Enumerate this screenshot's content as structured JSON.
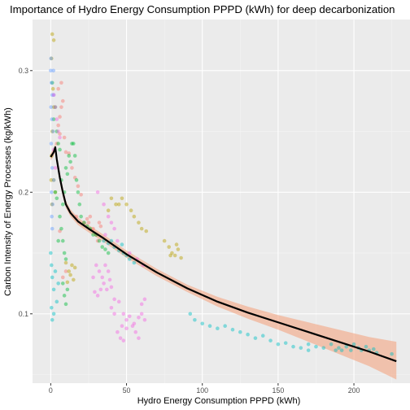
{
  "chart_data": {
    "type": "scatter",
    "title": "Importance of  Hydro Energy Consumption PPPD (kWh)  for deep decarbonization",
    "xlabel": "Hydro Energy Consumption PPPD (kWh)",
    "ylabel": "Carbon Intensity of Energy Processes (kg/kWh)",
    "xlim": [
      -12,
      237
    ],
    "ylim": [
      0.043,
      0.342
    ],
    "x_ticks": [
      0,
      50,
      100,
      150,
      200
    ],
    "x_tick_labels": [
      "0",
      "50",
      "100",
      "150",
      "200"
    ],
    "y_ticks": [
      0.1,
      0.2,
      0.3
    ],
    "y_tick_labels": [
      "0.1",
      "0.2",
      "0.3"
    ],
    "grid": true,
    "legend": "none",
    "point_alpha": 0.45,
    "series": [
      {
        "color": "#F8766D",
        "points": [
          [
            5,
            0.255
          ],
          [
            6,
            0.262
          ],
          [
            7,
            0.27
          ],
          [
            8,
            0.275
          ],
          [
            4,
            0.24
          ],
          [
            10,
            0.233
          ],
          [
            12,
            0.232
          ],
          [
            16,
            0.212
          ],
          [
            18,
            0.205
          ],
          [
            20,
            0.198
          ],
          [
            14,
            0.22
          ],
          [
            17,
            0.18
          ],
          [
            22,
            0.175
          ],
          [
            25,
            0.175
          ],
          [
            28,
            0.17
          ],
          [
            30,
            0.165
          ],
          [
            32,
            0.175
          ],
          [
            33,
            0.172
          ],
          [
            6,
            0.168
          ],
          [
            8,
            0.13
          ],
          [
            10,
            0.135
          ],
          [
            5,
            0.285
          ],
          [
            7,
            0.29
          ],
          [
            6,
            0.248
          ],
          [
            9,
            0.245
          ],
          [
            26,
            0.18
          ],
          [
            24,
            0.178
          ],
          [
            31,
            0.16
          ]
        ]
      },
      {
        "color": "#B79F00",
        "points": [
          [
            1,
            0.33
          ],
          [
            2,
            0.325
          ],
          [
            0.5,
            0.31
          ],
          [
            1.5,
            0.285
          ],
          [
            2,
            0.27
          ],
          [
            1,
            0.25
          ],
          [
            0.5,
            0.23
          ],
          [
            0.3,
            0.21
          ],
          [
            0.8,
            0.19
          ],
          [
            2,
            0.21
          ],
          [
            3,
            0.2
          ],
          [
            40,
            0.195
          ],
          [
            43,
            0.19
          ],
          [
            45,
            0.19
          ],
          [
            47,
            0.195
          ],
          [
            50,
            0.19
          ],
          [
            53,
            0.185
          ],
          [
            55,
            0.18
          ],
          [
            58,
            0.175
          ],
          [
            60,
            0.17
          ],
          [
            63,
            0.168
          ],
          [
            38,
            0.185
          ],
          [
            75,
            0.16
          ],
          [
            78,
            0.155
          ],
          [
            80,
            0.15
          ],
          [
            82,
            0.148
          ],
          [
            84,
            0.153
          ],
          [
            86,
            0.146
          ],
          [
            79,
            0.148
          ],
          [
            83,
            0.157
          ],
          [
            12,
            0.135
          ],
          [
            13,
            0.132
          ],
          [
            14,
            0.14
          ],
          [
            15,
            0.128
          ],
          [
            16,
            0.138
          ],
          [
            10,
            0.142
          ],
          [
            11,
            0.126
          ]
        ]
      },
      {
        "color": "#00BA38",
        "points": [
          [
            3,
            0.27
          ],
          [
            4,
            0.25
          ],
          [
            5,
            0.24
          ],
          [
            6,
            0.235
          ],
          [
            7,
            0.21
          ],
          [
            8,
            0.19
          ],
          [
            9,
            0.2
          ],
          [
            10,
            0.22
          ],
          [
            11,
            0.215
          ],
          [
            12,
            0.23
          ],
          [
            13,
            0.225
          ],
          [
            14,
            0.24
          ],
          [
            15,
            0.24
          ],
          [
            16,
            0.23
          ],
          [
            17,
            0.21
          ],
          [
            18,
            0.2
          ],
          [
            19,
            0.19
          ],
          [
            20,
            0.18
          ],
          [
            22,
            0.175
          ],
          [
            24,
            0.172
          ],
          [
            26,
            0.17
          ],
          [
            28,
            0.165
          ],
          [
            30,
            0.165
          ],
          [
            32,
            0.16
          ],
          [
            34,
            0.155
          ],
          [
            36,
            0.153
          ],
          [
            38,
            0.15
          ],
          [
            4,
            0.195
          ],
          [
            6,
            0.18
          ],
          [
            7,
            0.17
          ],
          [
            8,
            0.16
          ],
          [
            9,
            0.15
          ],
          [
            10,
            0.145
          ],
          [
            8,
            0.125
          ],
          [
            9,
            0.115
          ],
          [
            10,
            0.108
          ],
          [
            11,
            0.12
          ],
          [
            5,
            0.16
          ],
          [
            3,
            0.2
          ],
          [
            2,
            0.26
          ],
          [
            1,
            0.29
          ]
        ]
      },
      {
        "color": "#00BFC4",
        "points": [
          [
            0,
            0.15
          ],
          [
            0.5,
            0.14
          ],
          [
            1,
            0.13
          ],
          [
            2,
            0.12
          ],
          [
            3,
            0.135
          ],
          [
            4,
            0.11
          ],
          [
            5,
            0.125
          ],
          [
            1,
            0.095
          ],
          [
            0.5,
            0.105
          ],
          [
            2,
            0.1
          ],
          [
            35,
            0.16
          ],
          [
            38,
            0.158
          ],
          [
            40,
            0.16
          ],
          [
            42,
            0.155
          ],
          [
            45,
            0.152
          ],
          [
            48,
            0.15
          ],
          [
            50,
            0.148
          ],
          [
            52,
            0.145
          ],
          [
            55,
            0.142
          ],
          [
            47,
            0.157
          ],
          [
            95,
            0.095
          ],
          [
            100,
            0.092
          ],
          [
            105,
            0.09
          ],
          [
            110,
            0.088
          ],
          [
            115,
            0.09
          ],
          [
            120,
            0.087
          ],
          [
            125,
            0.085
          ],
          [
            130,
            0.083
          ],
          [
            135,
            0.08
          ],
          [
            140,
            0.082
          ],
          [
            145,
            0.078
          ],
          [
            150,
            0.075
          ],
          [
            155,
            0.076
          ],
          [
            160,
            0.073
          ],
          [
            165,
            0.072
          ],
          [
            170,
            0.075
          ],
          [
            175,
            0.073
          ],
          [
            180,
            0.072
          ],
          [
            185,
            0.075
          ],
          [
            188,
            0.07
          ],
          [
            190,
            0.072
          ],
          [
            192,
            0.07
          ],
          [
            195,
            0.073
          ],
          [
            198,
            0.07
          ],
          [
            200,
            0.075
          ],
          [
            203,
            0.072
          ],
          [
            205,
            0.07
          ],
          [
            208,
            0.073
          ],
          [
            210,
            0.07
          ],
          [
            213,
            0.071
          ],
          [
            215,
            0.068
          ],
          [
            225,
            0.067
          ],
          [
            92,
            0.1
          ],
          [
            170,
            0.07
          ]
        ]
      },
      {
        "color": "#619CFF",
        "points": [
          [
            0,
            0.3
          ],
          [
            0.5,
            0.29
          ],
          [
            1,
            0.28
          ],
          [
            0.2,
            0.27
          ],
          [
            0.8,
            0.26
          ],
          [
            1.5,
            0.25
          ],
          [
            0.3,
            0.24
          ],
          [
            1,
            0.22
          ],
          [
            2,
            0.21
          ],
          [
            0.5,
            0.2
          ],
          [
            1.2,
            0.19
          ],
          [
            0.7,
            0.18
          ],
          [
            1,
            0.17
          ],
          [
            0.2,
            0.31
          ],
          [
            1.8,
            0.3
          ],
          [
            2,
            0.28
          ]
        ]
      },
      {
        "color": "#F564E3",
        "points": [
          [
            2,
            0.28
          ],
          [
            3,
            0.27
          ],
          [
            4,
            0.26
          ],
          [
            5,
            0.25
          ],
          [
            6,
            0.245
          ],
          [
            2,
            0.235
          ],
          [
            3,
            0.22
          ],
          [
            30,
            0.14
          ],
          [
            32,
            0.135
          ],
          [
            34,
            0.13
          ],
          [
            36,
            0.14
          ],
          [
            38,
            0.135
          ],
          [
            35,
            0.125
          ],
          [
            33,
            0.12
          ],
          [
            31,
            0.115
          ],
          [
            37,
            0.12
          ],
          [
            39,
            0.128
          ],
          [
            40,
            0.122
          ],
          [
            28,
            0.13
          ],
          [
            29,
            0.118
          ],
          [
            42,
            0.112
          ],
          [
            45,
            0.11
          ],
          [
            48,
            0.1
          ],
          [
            50,
            0.095
          ],
          [
            52,
            0.098
          ],
          [
            55,
            0.092
          ],
          [
            58,
            0.097
          ],
          [
            60,
            0.1
          ],
          [
            62,
            0.095
          ],
          [
            54,
            0.09
          ],
          [
            56,
            0.085
          ],
          [
            58,
            0.08
          ],
          [
            50,
            0.088
          ],
          [
            47,
            0.09
          ],
          [
            44,
            0.085
          ],
          [
            46,
            0.08
          ],
          [
            48,
            0.078
          ],
          [
            42,
            0.1
          ],
          [
            40,
            0.105
          ],
          [
            60,
            0.108
          ],
          [
            62,
            0.112
          ],
          [
            35,
            0.19
          ],
          [
            38,
            0.18
          ],
          [
            40,
            0.175
          ],
          [
            42,
            0.17
          ],
          [
            31,
            0.2
          ],
          [
            36,
            0.165
          ],
          [
            44,
            0.16
          ],
          [
            52,
            0.15
          ],
          [
            57,
            0.145
          ],
          [
            61,
            0.14
          ]
        ]
      }
    ],
    "trend": {
      "type": "smooth",
      "color": "#000000",
      "band_color": "#F4A582",
      "line": [
        [
          0,
          0.229
        ],
        [
          2,
          0.233
        ],
        [
          3,
          0.237
        ],
        [
          4,
          0.227
        ],
        [
          6,
          0.212
        ],
        [
          8,
          0.2
        ],
        [
          10,
          0.19
        ],
        [
          13,
          0.183
        ],
        [
          18,
          0.176
        ],
        [
          25,
          0.17
        ],
        [
          35,
          0.162
        ],
        [
          50,
          0.149
        ],
        [
          70,
          0.134
        ],
        [
          90,
          0.121
        ],
        [
          110,
          0.11
        ],
        [
          130,
          0.101
        ],
        [
          150,
          0.093
        ],
        [
          170,
          0.085
        ],
        [
          190,
          0.077
        ],
        [
          210,
          0.069
        ],
        [
          228,
          0.061
        ]
      ],
      "band_upper": [
        [
          0,
          0.232
        ],
        [
          2,
          0.236
        ],
        [
          3,
          0.24
        ],
        [
          4,
          0.231
        ],
        [
          6,
          0.216
        ],
        [
          8,
          0.204
        ],
        [
          10,
          0.193
        ],
        [
          13,
          0.186
        ],
        [
          18,
          0.179
        ],
        [
          25,
          0.173
        ],
        [
          35,
          0.165
        ],
        [
          50,
          0.152
        ],
        [
          70,
          0.137
        ],
        [
          90,
          0.124
        ],
        [
          110,
          0.114
        ],
        [
          130,
          0.106
        ],
        [
          150,
          0.099
        ],
        [
          170,
          0.093
        ],
        [
          190,
          0.087
        ],
        [
          210,
          0.081
        ],
        [
          228,
          0.077
        ]
      ],
      "band_lower": [
        [
          0,
          0.226
        ],
        [
          2,
          0.23
        ],
        [
          3,
          0.234
        ],
        [
          4,
          0.223
        ],
        [
          6,
          0.208
        ],
        [
          8,
          0.196
        ],
        [
          10,
          0.187
        ],
        [
          13,
          0.18
        ],
        [
          18,
          0.173
        ],
        [
          25,
          0.167
        ],
        [
          35,
          0.159
        ],
        [
          50,
          0.146
        ],
        [
          70,
          0.131
        ],
        [
          90,
          0.118
        ],
        [
          110,
          0.106
        ],
        [
          130,
          0.096
        ],
        [
          150,
          0.087
        ],
        [
          170,
          0.077
        ],
        [
          190,
          0.067
        ],
        [
          210,
          0.057
        ],
        [
          228,
          0.046
        ]
      ]
    }
  }
}
